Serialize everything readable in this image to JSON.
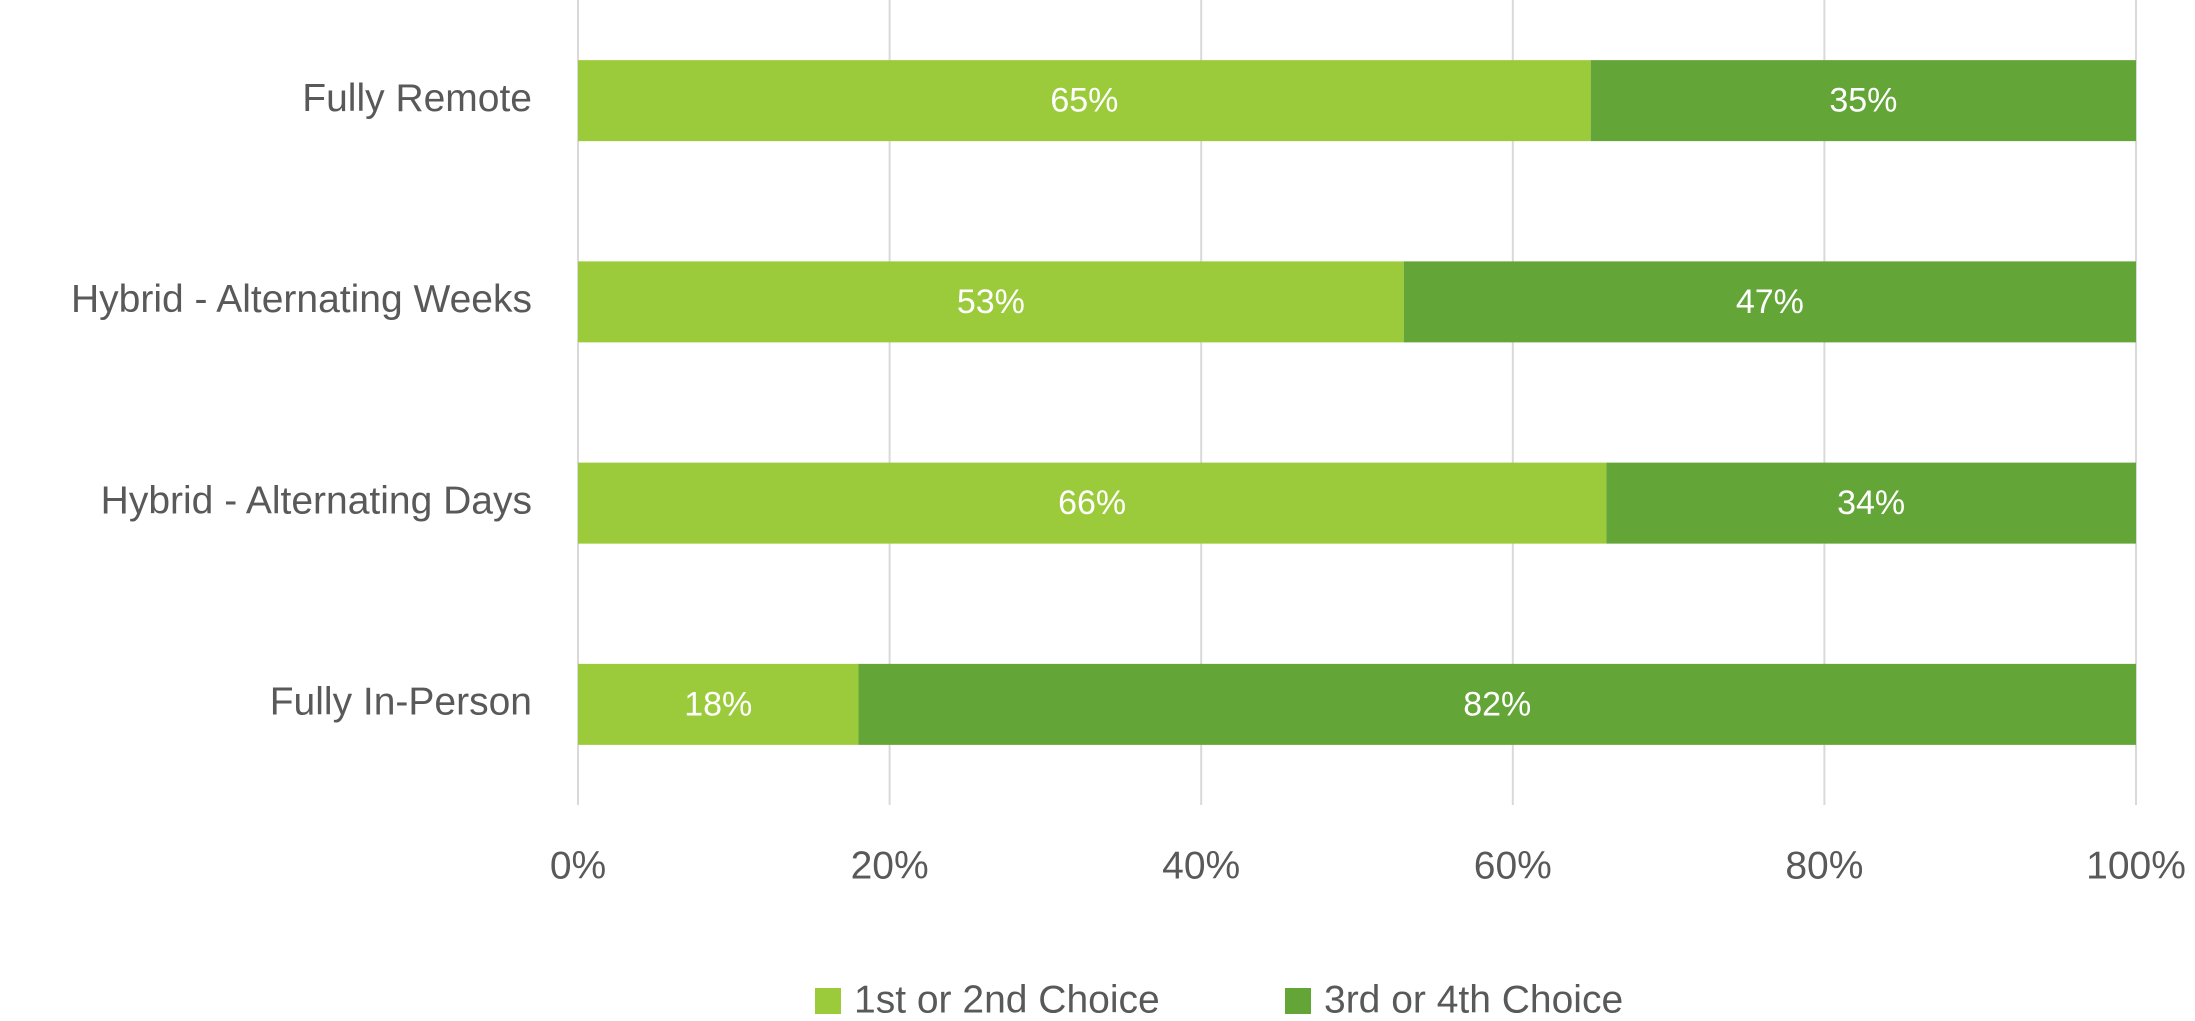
{
  "chart_data": {
    "type": "stacked-barh",
    "categories": [
      "Fully Remote",
      "Hybrid - Alternating Weeks",
      "Hybrid - Alternating Days",
      "Fully In-Person"
    ],
    "series": [
      {
        "name": "1st or 2nd Choice",
        "color": "#9bcb3b",
        "values": [
          65,
          53,
          66,
          18
        ],
        "value_labels": [
          "65%",
          "53%",
          "66%",
          "18%"
        ]
      },
      {
        "name": "3rd or 4th Choice",
        "color": "#63a537",
        "values": [
          35,
          47,
          34,
          82
        ],
        "value_labels": [
          "35%",
          "47%",
          "34%",
          "82%"
        ]
      }
    ],
    "xlim": [
      0,
      100
    ],
    "xticks": [
      {
        "value": 0,
        "label": "0%"
      },
      {
        "value": 20,
        "label": "20%"
      },
      {
        "value": 40,
        "label": "40%"
      },
      {
        "value": 60,
        "label": "60%"
      },
      {
        "value": 80,
        "label": "80%"
      },
      {
        "value": 100,
        "label": "100%"
      }
    ],
    "grid": true,
    "legend": "bottom"
  }
}
